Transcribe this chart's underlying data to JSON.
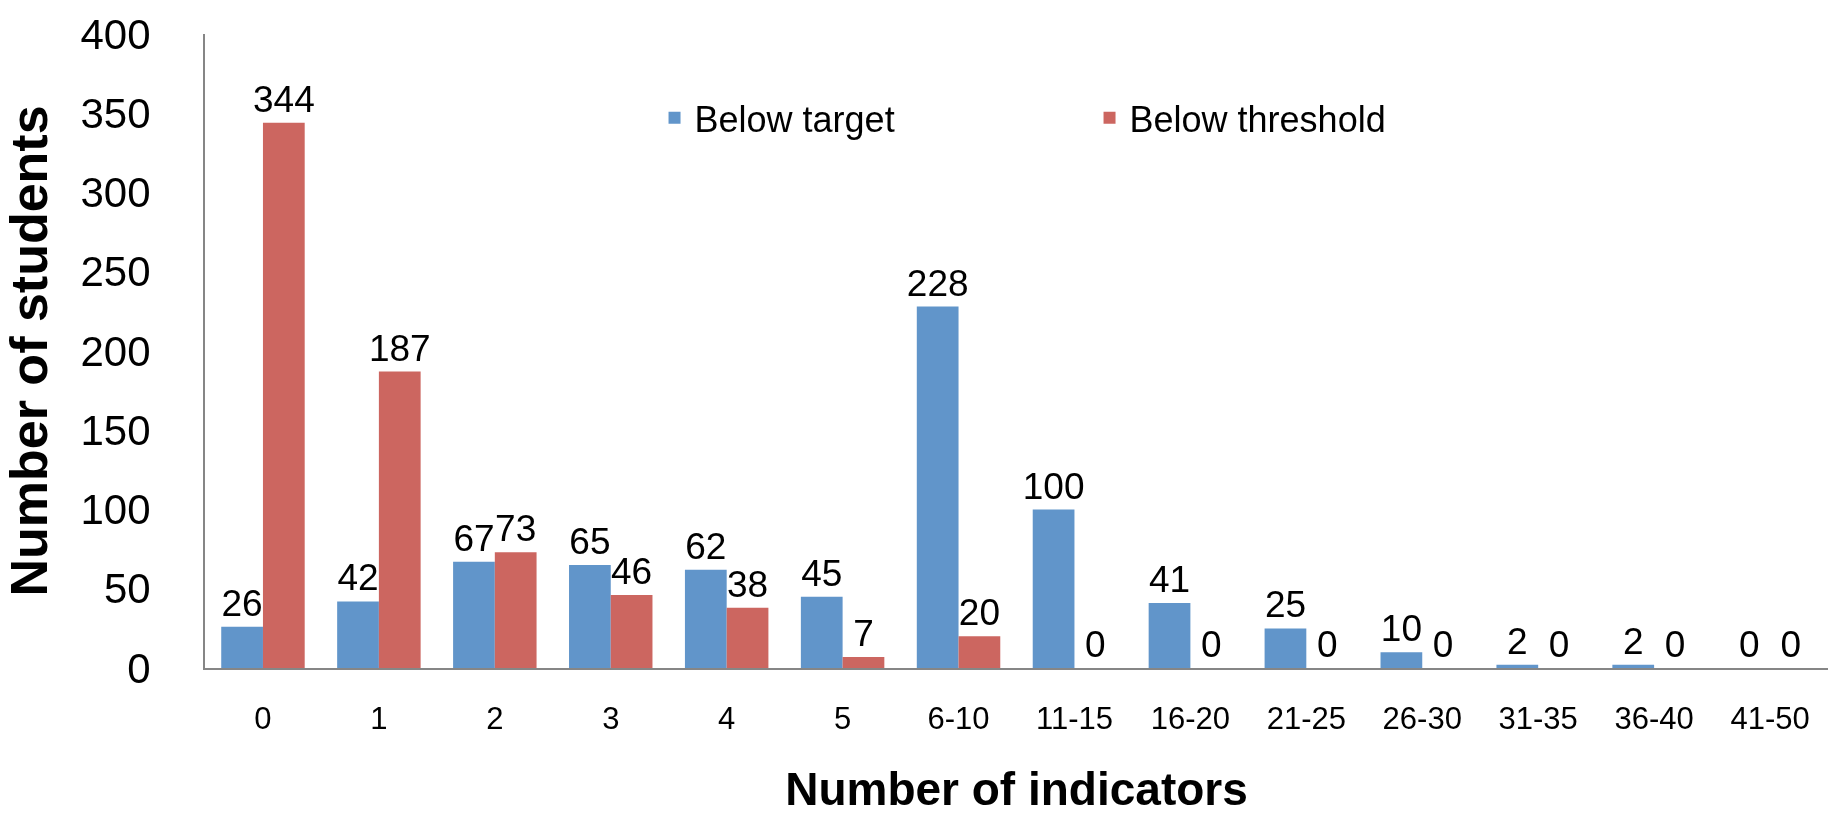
{
  "chart_data": {
    "type": "bar",
    "xlabel": "Number of indicators",
    "ylabel": "Number of students",
    "categories": [
      "0",
      "1",
      "2",
      "3",
      "4",
      "5",
      "6-10",
      "11-15",
      "16-20",
      "21-25",
      "26-30",
      "31-35",
      "36-40",
      "41-50"
    ],
    "series": [
      {
        "name": "Below target",
        "color": "#6195ca",
        "values": [
          26,
          42,
          67,
          65,
          62,
          45,
          228,
          100,
          41,
          25,
          10,
          2,
          2,
          0
        ]
      },
      {
        "name": "Below threshold",
        "color": "#cc6660",
        "values": [
          344,
          187,
          73,
          46,
          38,
          7,
          20,
          0,
          0,
          0,
          0,
          0,
          0,
          0
        ]
      }
    ],
    "ylim": [
      0,
      400
    ],
    "yticks": [
      0,
      50,
      100,
      150,
      200,
      250,
      300,
      350,
      400
    ],
    "data_labels": true,
    "legend": "top",
    "grid": false
  }
}
